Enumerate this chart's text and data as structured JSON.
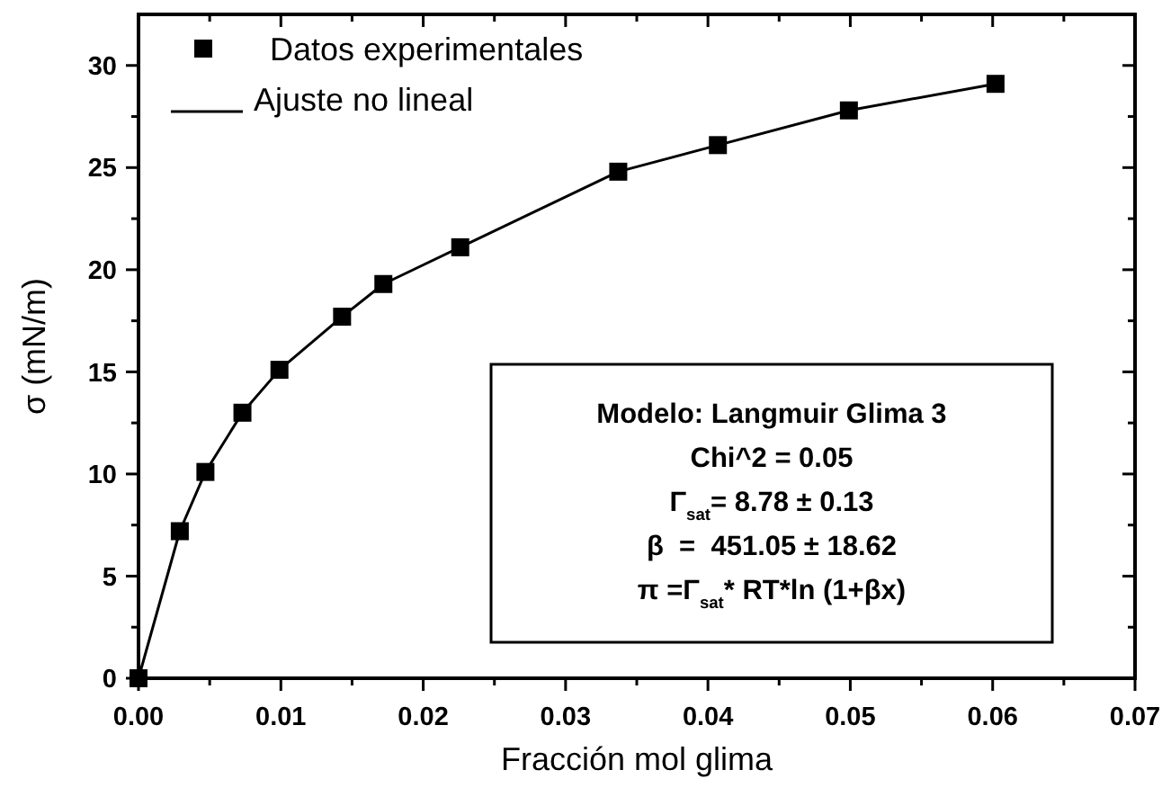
{
  "chart_data": {
    "type": "scatter",
    "xlabel": "Fracción mol glima",
    "ylabel": "σ (mN/m)",
    "xlim": [
      0,
      0.07
    ],
    "xticks": [
      {
        "value": 0,
        "label": "0.00"
      },
      {
        "value": 0.005,
        "label": null
      },
      0.01,
      {
        "value": 0.015,
        "label": null
      },
      0.02,
      {
        "value": 0.025,
        "label": null
      },
      0.03,
      {
        "value": 0.035,
        "label": null
      },
      0.04,
      {
        "value": 0.045,
        "label": null
      },
      0.05,
      {
        "value": 0.055,
        "label": null
      },
      0.06,
      {
        "value": 0.065,
        "label": null
      },
      0.07
    ],
    "ylim": [
      0,
      32.5
    ],
    "yticks": [
      0,
      {
        "value": 2.5,
        "label": null
      },
      5,
      {
        "value": 7.5,
        "label": null
      },
      10,
      {
        "value": 12.5,
        "label": null
      },
      15,
      {
        "value": 17.5,
        "label": null
      },
      20,
      {
        "value": 22.5,
        "label": null
      },
      25,
      {
        "value": 27.5,
        "label": null
      },
      30
    ],
    "x": [
      0,
      0.0029,
      0.0047,
      0.0073,
      0.0099,
      0.0143,
      0.0172,
      0.0226,
      0.0337,
      0.0407,
      0.0499,
      0.0602
    ],
    "series": [
      {
        "name": "Datos experimentales",
        "marker": "square",
        "color": "#000000",
        "values": [
          0,
          7.2,
          10.1,
          13.0,
          15.1,
          17.7,
          19.3,
          21.1,
          24.8,
          26.1,
          27.8,
          29.1
        ]
      },
      {
        "name": "Ajuste no lineal",
        "type": "line",
        "color": "#000000",
        "values": [
          0,
          7.2,
          10.1,
          13.0,
          15.1,
          17.7,
          19.3,
          21.1,
          24.8,
          26.1,
          27.8,
          29.1
        ]
      }
    ],
    "legend": "top left",
    "annotations": [
      "Modelo: Langmuir Glima 3",
      "Chi^2 = 0.05",
      "Γ$_{sat}$= 8.78 ± 0.13",
      "β  =  451.05 ± 18.62",
      "π =Γ$_{sat}$* RT*ln (1+βx)"
    ]
  }
}
